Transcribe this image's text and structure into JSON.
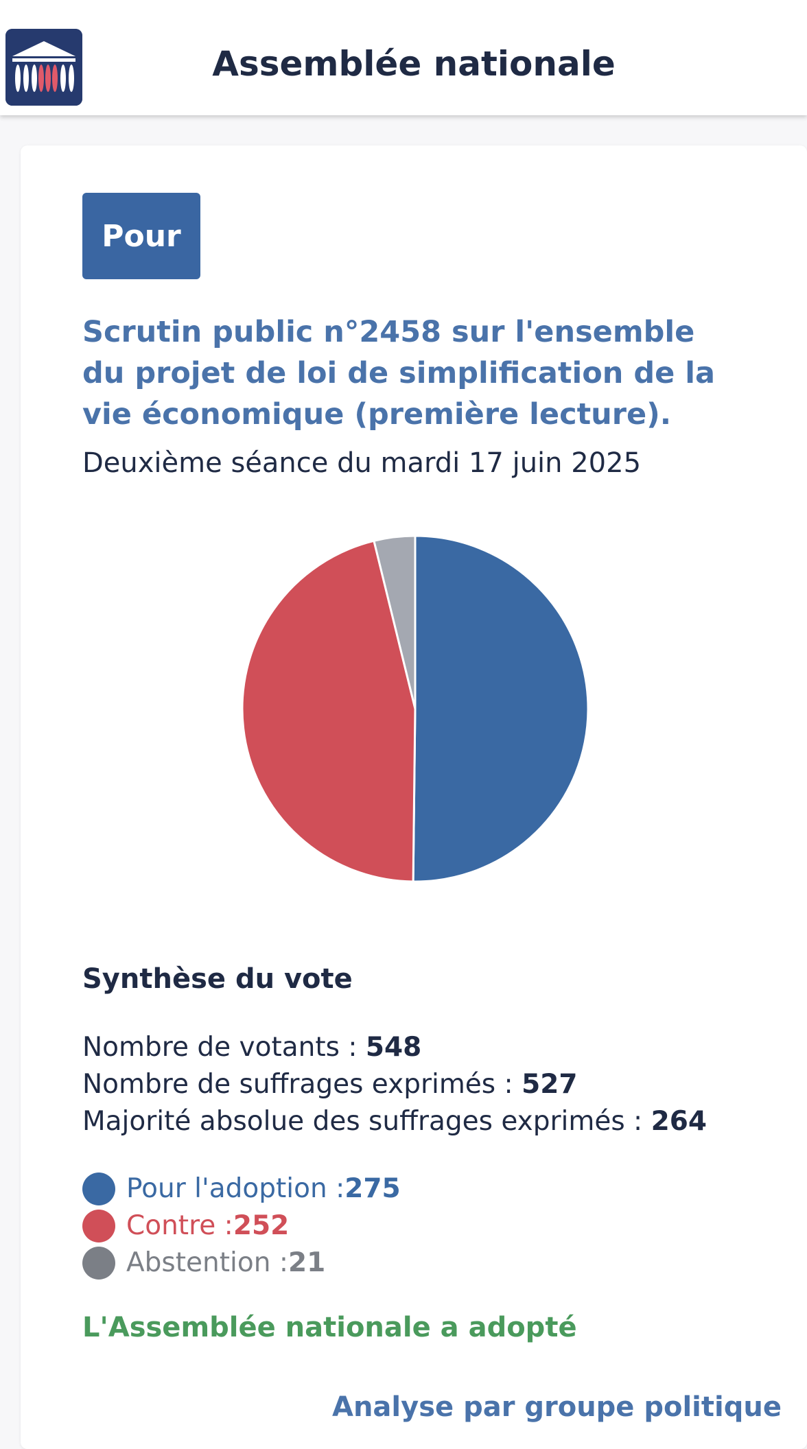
{
  "header": {
    "title": "Assemblée nationale",
    "logo_icon": "assemblee-nationale-logo-icon",
    "logo_bg": "#263a6e"
  },
  "vote": {
    "position_badge": "Pour",
    "title": "Scrutin public n°2458 sur l'ensemble du projet de loi de simplification de la vie économique (première lecture).",
    "session_date": "Deuxième séance du mardi 17 juin 2025"
  },
  "chart_data": {
    "type": "pie",
    "slices": [
      {
        "label": "Pour l'adoption",
        "value": 275,
        "color": "#3a69a3"
      },
      {
        "label": "Contre",
        "value": 252,
        "color": "#d04f58"
      },
      {
        "label": "Abstention",
        "value": 21,
        "color": "#a4a8b1"
      }
    ],
    "start": "top",
    "direction": "clockwise"
  },
  "synthesis": {
    "title": "Synthèse du vote",
    "votants_label": "Nombre de votants : ",
    "votants_value": "548",
    "suffrages_label": "Nombre de suffrages exprimés : ",
    "suffrages_value": "527",
    "majorite_label": "Majorité absolue des suffrages exprimés : ",
    "majorite_value": "264"
  },
  "legend": {
    "pour_label": "Pour l'adoption : ",
    "pour_value": "275",
    "pour_color": "#3a69a3",
    "contre_label": "Contre : ",
    "contre_value": "252",
    "contre_color": "#d04f58",
    "abstention_label": "Abstention : ",
    "abstention_value": "21",
    "abstention_color": "#7b7f86"
  },
  "result": {
    "text": "L'Assemblée nationale a adopté"
  },
  "footer_link": {
    "text": "Analyse par groupe politique"
  }
}
